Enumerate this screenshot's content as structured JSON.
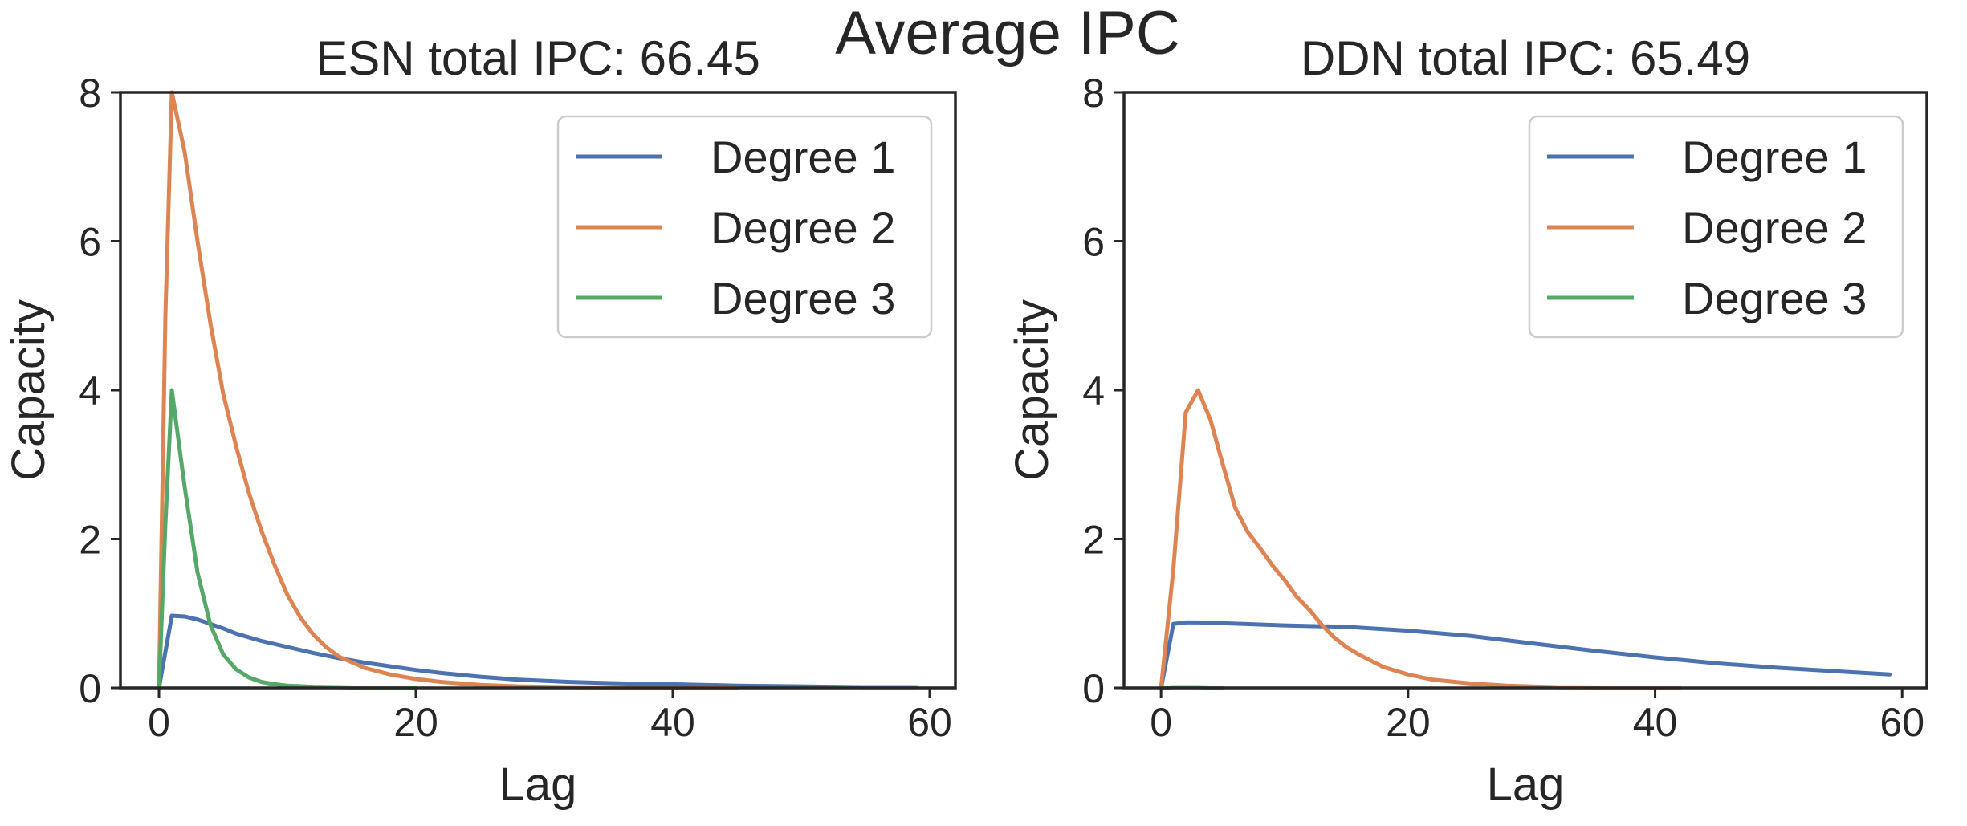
{
  "figure_title": "Average IPC",
  "chart_data": [
    {
      "type": "line",
      "title": "ESN total IPC: 66.45",
      "xlabel": "Lag",
      "ylabel": "Capacity",
      "xlim": [
        -3,
        62
      ],
      "ylim": [
        0,
        8
      ],
      "xticks": [
        0,
        20,
        40,
        60
      ],
      "yticks": [
        0,
        2,
        4,
        6,
        8
      ],
      "legend_position": "top-right",
      "series": [
        {
          "name": "Degree 1",
          "color": "#4c72b0",
          "x": [
            0,
            1,
            2,
            3,
            4,
            5,
            6,
            8,
            10,
            12,
            14,
            16,
            18,
            20,
            22,
            25,
            28,
            32,
            36,
            40,
            45,
            50,
            55,
            59
          ],
          "y": [
            0,
            0.97,
            0.96,
            0.92,
            0.86,
            0.8,
            0.73,
            0.63,
            0.55,
            0.47,
            0.4,
            0.34,
            0.29,
            0.24,
            0.2,
            0.15,
            0.11,
            0.08,
            0.06,
            0.05,
            0.03,
            0.02,
            0.01,
            0.01
          ]
        },
        {
          "name": "Degree 2",
          "color": "#dd8452",
          "x": [
            0,
            0.5,
            1,
            2,
            3,
            4,
            5,
            6,
            7,
            8,
            9,
            10,
            11,
            12,
            13,
            14,
            16,
            18,
            20,
            22,
            25,
            28,
            32,
            36,
            40,
            45
          ],
          "y": [
            0,
            5.0,
            8.0,
            7.2,
            6.0,
            4.9,
            3.95,
            3.25,
            2.62,
            2.1,
            1.65,
            1.25,
            0.95,
            0.72,
            0.55,
            0.42,
            0.27,
            0.18,
            0.12,
            0.08,
            0.04,
            0.02,
            0.01,
            0.005,
            0,
            0
          ]
        },
        {
          "name": "Degree 3",
          "color": "#55a868",
          "x": [
            0,
            0.5,
            1,
            2,
            3,
            4,
            5,
            6,
            7,
            8,
            9,
            10,
            12,
            14,
            17,
            20
          ],
          "y": [
            0,
            2.2,
            4.0,
            2.7,
            1.55,
            0.85,
            0.45,
            0.25,
            0.14,
            0.08,
            0.05,
            0.03,
            0.015,
            0.01,
            0,
            0
          ]
        }
      ]
    },
    {
      "type": "line",
      "title": "DDN total IPC: 65.49",
      "xlabel": "Lag",
      "ylabel": "Capacity",
      "xlim": [
        -3,
        62
      ],
      "ylim": [
        0,
        8
      ],
      "xticks": [
        0,
        20,
        40,
        60
      ],
      "yticks": [
        0,
        2,
        4,
        6,
        8
      ],
      "legend_position": "top-right",
      "series": [
        {
          "name": "Degree 1",
          "color": "#4c72b0",
          "x": [
            0,
            1,
            2,
            3,
            5,
            10,
            15,
            20,
            25,
            30,
            35,
            40,
            45,
            50,
            55,
            59
          ],
          "y": [
            0,
            0.86,
            0.88,
            0.88,
            0.87,
            0.84,
            0.82,
            0.77,
            0.7,
            0.6,
            0.5,
            0.41,
            0.33,
            0.27,
            0.22,
            0.18
          ]
        },
        {
          "name": "Degree 2",
          "color": "#dd8452",
          "x": [
            0,
            1,
            2,
            3,
            4,
            5,
            6,
            7,
            8,
            9,
            10,
            11,
            12,
            13,
            14,
            15,
            16,
            18,
            20,
            22,
            25,
            28,
            32,
            36,
            42
          ],
          "y": [
            0,
            1.6,
            3.7,
            4.0,
            3.6,
            3.0,
            2.42,
            2.1,
            1.88,
            1.65,
            1.45,
            1.22,
            1.05,
            0.85,
            0.68,
            0.55,
            0.45,
            0.28,
            0.18,
            0.11,
            0.06,
            0.03,
            0.01,
            0.005,
            0
          ]
        },
        {
          "name": "Degree 3",
          "color": "#55a868",
          "x": [
            0,
            1,
            2,
            3,
            4,
            5
          ],
          "y": [
            0,
            0.01,
            0.01,
            0.01,
            0.005,
            0
          ]
        }
      ]
    }
  ]
}
